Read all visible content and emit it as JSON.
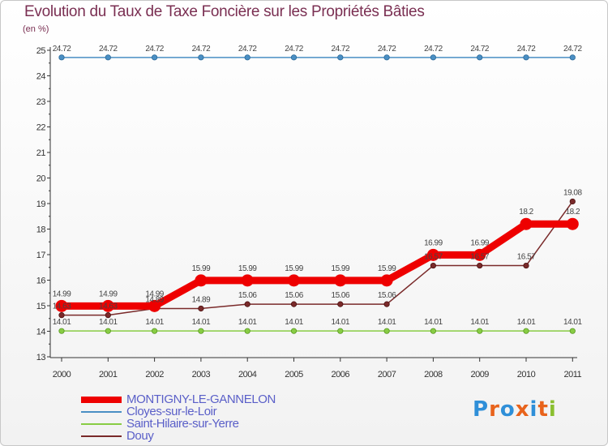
{
  "title": "Evolution du Taux de Taxe Foncière sur les Propriétés Bâties",
  "unit_label": "(en %)",
  "logo": {
    "text": "Proxiti",
    "letter_colors": [
      "#2f8fd8",
      "#e8631c",
      "#2f8fd8",
      "#e8631c",
      "#2f8fd8",
      "#e8631c",
      "#8abf2f"
    ]
  },
  "chart_data": {
    "type": "line",
    "title": "Evolution du Taux de Taxe Foncière sur les Propriétés Bâties",
    "ylabel": "(en %)",
    "xlabel": "",
    "ylim": [
      13,
      25
    ],
    "y_ticks": [
      13,
      14,
      15,
      16,
      17,
      18,
      19,
      20,
      21,
      22,
      23,
      24,
      25
    ],
    "categories": [
      "2000",
      "2001",
      "2002",
      "2003",
      "2004",
      "2005",
      "2006",
      "2007",
      "2008",
      "2009",
      "2010",
      "2011"
    ],
    "grid": false,
    "legend_position": "bottom-left",
    "series": [
      {
        "name": "MONTIGNY-LE-GANNELON",
        "color": "#ee0000",
        "values": [
          14.99,
          14.99,
          14.99,
          15.99,
          15.99,
          15.99,
          15.99,
          15.99,
          16.99,
          16.99,
          18.2,
          18.2
        ],
        "labels": [
          "14.99",
          "14.99",
          "14.99",
          "15.99",
          "15.99",
          "15.99",
          "15.99",
          "15.99",
          "16.99",
          "16.99",
          "18.2",
          "18.2"
        ]
      },
      {
        "name": "Cloyes-sur-le-Loir",
        "color": "#4a8fc4",
        "values": [
          24.72,
          24.72,
          24.72,
          24.72,
          24.72,
          24.72,
          24.72,
          24.72,
          24.72,
          24.72,
          24.72,
          24.72
        ],
        "labels": [
          "24.72",
          "24.72",
          "24.72",
          "24.72",
          "24.72",
          "24.72",
          "24.72",
          "24.72",
          "24.72",
          "24.72",
          "24.72",
          "24.72"
        ]
      },
      {
        "name": "Saint-Hilaire-sur-Yerre",
        "color": "#88cc44",
        "values": [
          14.01,
          14.01,
          14.01,
          14.01,
          14.01,
          14.01,
          14.01,
          14.01,
          14.01,
          14.01,
          14.01,
          14.01
        ],
        "labels": [
          "14.01",
          "14.01",
          "14.01",
          "14.01",
          "14.01",
          "14.01",
          "14.01",
          "14.01",
          "14.01",
          "14.01",
          "14.01",
          "14.01"
        ]
      },
      {
        "name": "Douy",
        "color": "#7a2a2a",
        "values": [
          14.63,
          14.63,
          14.89,
          14.89,
          15.06,
          15.06,
          15.06,
          15.06,
          16.57,
          16.57,
          16.57,
          19.08
        ],
        "labels": [
          "14.63",
          "14.63",
          "14.89",
          "14.89",
          "15.06",
          "15.06",
          "15.06",
          "15.06",
          "16.57",
          "16.57",
          "16.57",
          "19.08"
        ]
      }
    ]
  }
}
